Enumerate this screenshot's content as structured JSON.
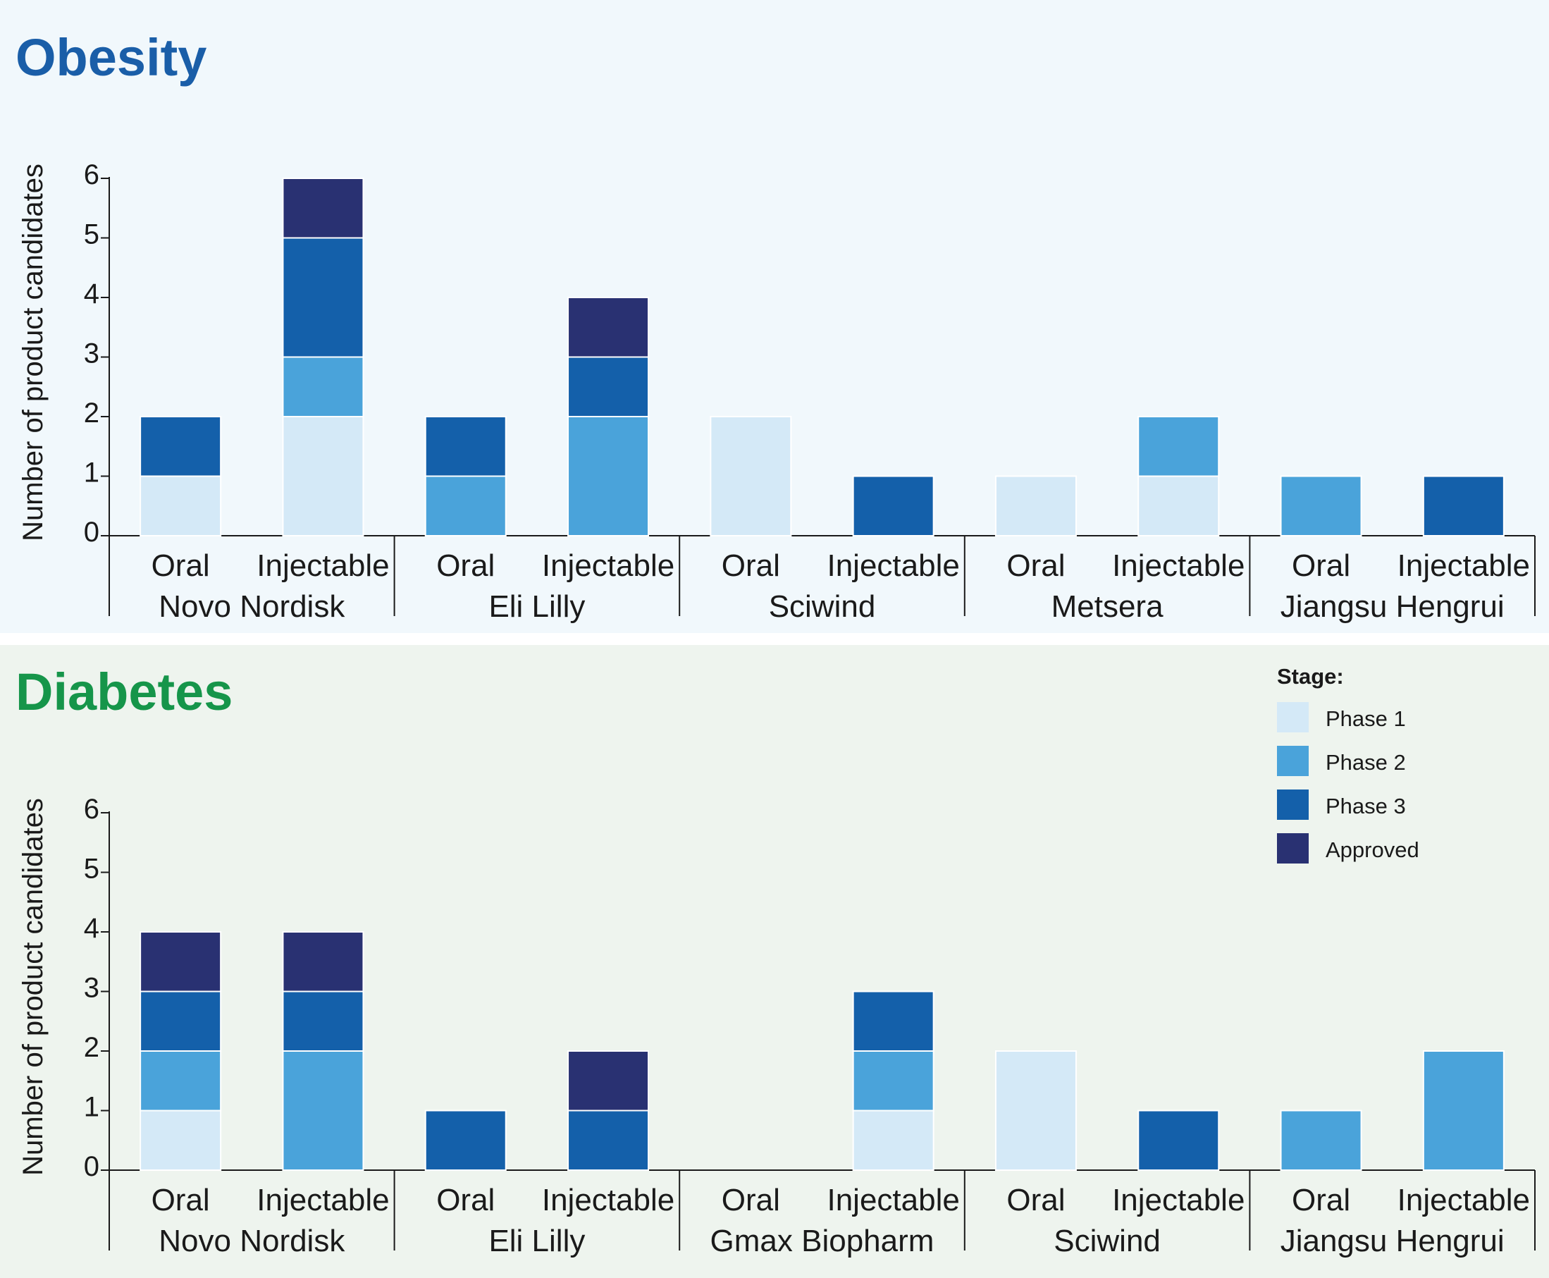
{
  "colors": {
    "phase1": "#d4e9f7",
    "phase2": "#4aa3da",
    "phase3": "#1460aa",
    "approved": "#293172",
    "obesity_bg": "#f1f8fc",
    "diabetes_bg": "#eef4ee",
    "obesity_title": "#1a5ea8",
    "diabetes_title": "#16954a"
  },
  "legend": {
    "title": "Stage:",
    "items": [
      {
        "key": "phase1",
        "label": "Phase 1"
      },
      {
        "key": "phase2",
        "label": "Phase 2"
      },
      {
        "key": "phase3",
        "label": "Phase 3"
      },
      {
        "key": "approved",
        "label": "Approved"
      }
    ]
  },
  "chart_data": [
    {
      "type": "bar",
      "stacked": true,
      "title": "Obesity",
      "ylabel": "Number of product candidates",
      "ylim": [
        0,
        6
      ],
      "yticks": [
        "0",
        "1",
        "2",
        "3",
        "4",
        "5",
        "6"
      ],
      "companies": [
        "Novo Nordisk",
        "Eli Lilly",
        "Sciwind",
        "Metsera",
        "Jiangsu Hengrui"
      ],
      "categories": [
        "Oral",
        "Injectable",
        "Oral",
        "Injectable",
        "Oral",
        "Injectable",
        "Oral",
        "Injectable",
        "Oral",
        "Injectable"
      ],
      "series": [
        {
          "name": "Phase 1",
          "key": "phase1",
          "values": [
            1,
            2,
            0,
            0,
            2,
            0,
            1,
            1,
            0,
            0
          ]
        },
        {
          "name": "Phase 2",
          "key": "phase2",
          "values": [
            0,
            1,
            1,
            2,
            0,
            0,
            0,
            1,
            1,
            0
          ]
        },
        {
          "name": "Phase 3",
          "key": "phase3",
          "values": [
            1,
            2,
            1,
            1,
            0,
            1,
            0,
            0,
            0,
            1
          ]
        },
        {
          "name": "Approved",
          "key": "approved",
          "values": [
            0,
            1,
            0,
            1,
            0,
            0,
            0,
            0,
            0,
            0
          ]
        }
      ]
    },
    {
      "type": "bar",
      "stacked": true,
      "title": "Diabetes",
      "ylabel": "Number of product candidates",
      "ylim": [
        0,
        6
      ],
      "yticks": [
        "0",
        "1",
        "2",
        "3",
        "4",
        "5",
        "6"
      ],
      "companies": [
        "Novo Nordisk",
        "Eli Lilly",
        "Gmax Biopharm",
        "Sciwind",
        "Jiangsu Hengrui"
      ],
      "categories": [
        "Oral",
        "Injectable",
        "Oral",
        "Injectable",
        "Oral",
        "Injectable",
        "Oral",
        "Injectable",
        "Oral",
        "Injectable"
      ],
      "series": [
        {
          "name": "Phase 1",
          "key": "phase1",
          "values": [
            1,
            0,
            0,
            0,
            0,
            1,
            2,
            0,
            0,
            0
          ]
        },
        {
          "name": "Phase 2",
          "key": "phase2",
          "values": [
            1,
            2,
            0,
            0,
            0,
            1,
            0,
            0,
            1,
            2
          ]
        },
        {
          "name": "Phase 3",
          "key": "phase3",
          "values": [
            1,
            1,
            1,
            1,
            0,
            1,
            0,
            1,
            0,
            0
          ]
        },
        {
          "name": "Approved",
          "key": "approved",
          "values": [
            1,
            1,
            0,
            1,
            0,
            0,
            0,
            0,
            0,
            0
          ]
        }
      ]
    }
  ]
}
